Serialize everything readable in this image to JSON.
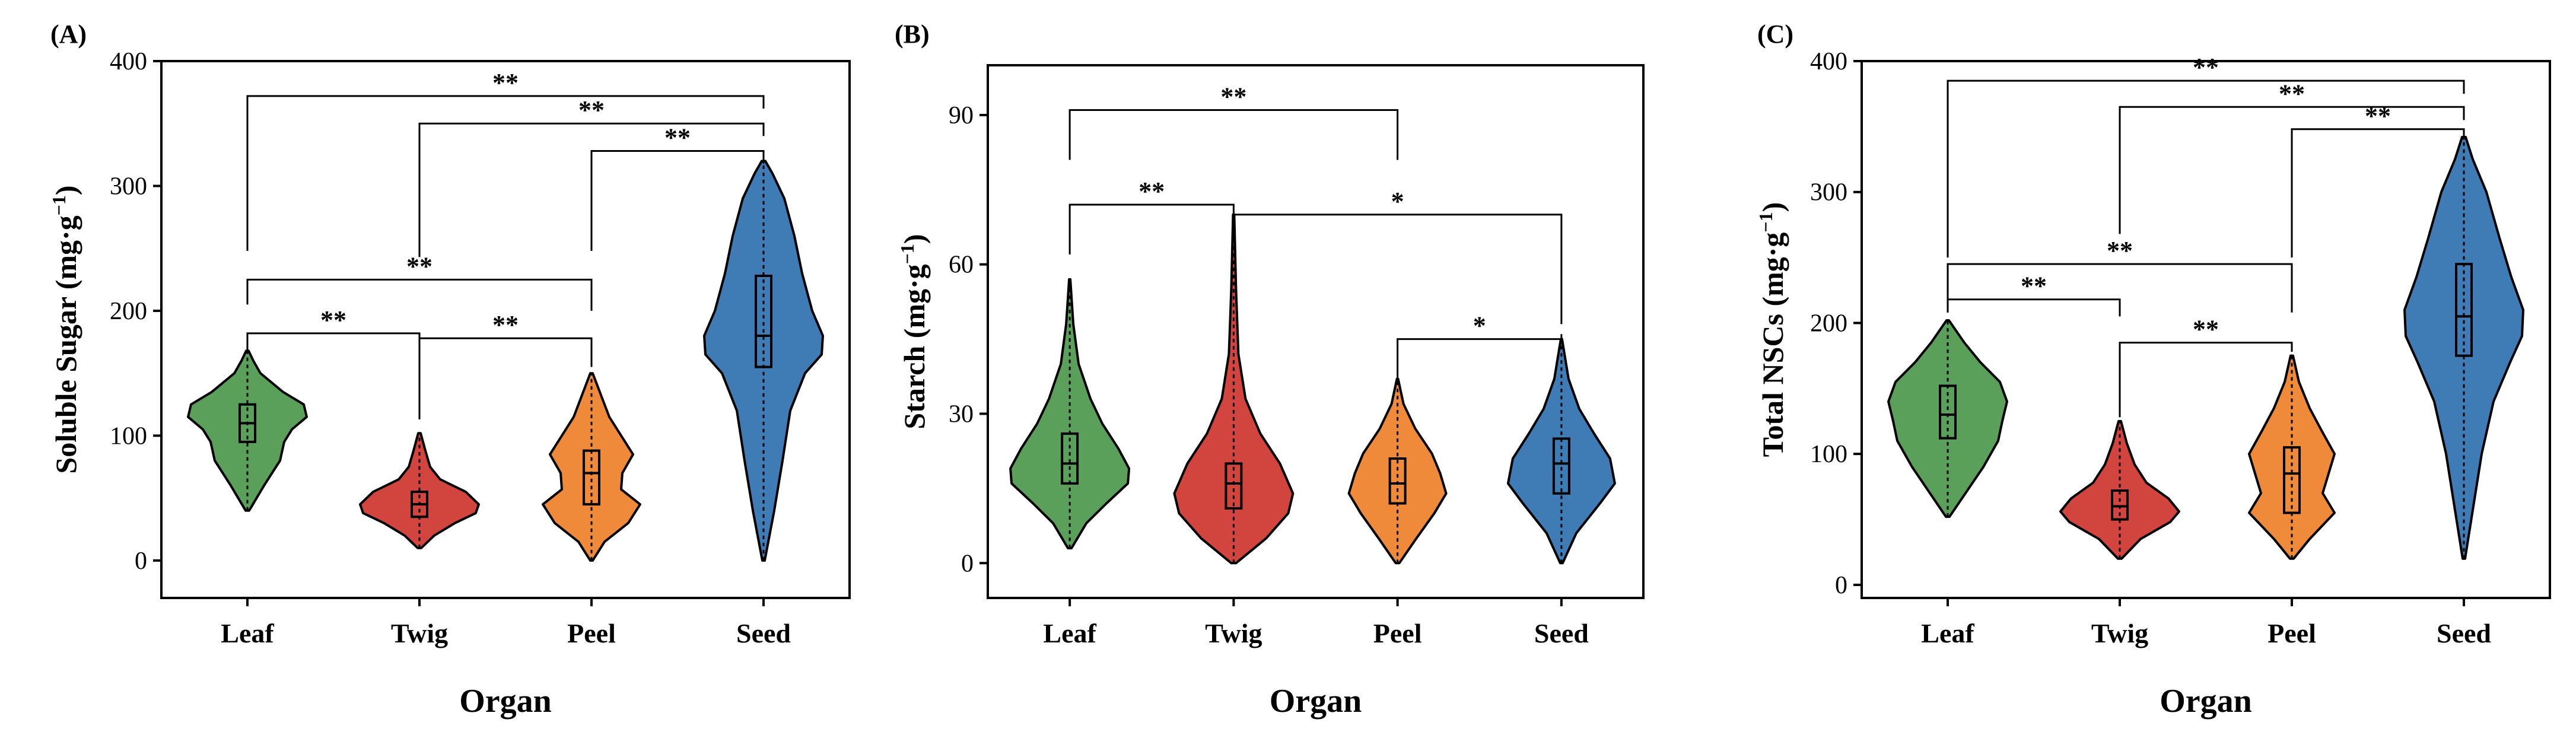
{
  "chart_data": [
    {
      "type": "violin",
      "panel_label": "(A)",
      "title": "",
      "xlabel": "Organ",
      "ylabel": "Soluble Sugar (mg·g",
      "ylabel_sup": "−1",
      "ylabel_close": ")",
      "ylim": [
        -30,
        400
      ],
      "yticks": [
        0,
        100,
        200,
        300,
        400
      ],
      "categories": [
        "Leaf",
        "Twig",
        "Peel",
        "Seed"
      ],
      "series": [
        {
          "category": "Leaf",
          "color": "#5ba05a",
          "min": 40,
          "q1": 95,
          "median": 110,
          "q3": 125,
          "max": 168,
          "density": [
            [
              40,
              0.03
            ],
            [
              60,
              0.28
            ],
            [
              80,
              0.55
            ],
            [
              95,
              0.62
            ],
            [
              105,
              0.75
            ],
            [
              115,
              1.0
            ],
            [
              125,
              0.95
            ],
            [
              135,
              0.6
            ],
            [
              150,
              0.22
            ],
            [
              160,
              0.1
            ],
            [
              168,
              0.02
            ]
          ]
        },
        {
          "category": "Twig",
          "color": "#d2453f",
          "min": 10,
          "q1": 35,
          "median": 45,
          "q3": 55,
          "max": 102,
          "density": [
            [
              10,
              0.03
            ],
            [
              20,
              0.25
            ],
            [
              30,
              0.6
            ],
            [
              38,
              0.95
            ],
            [
              45,
              1.0
            ],
            [
              55,
              0.78
            ],
            [
              65,
              0.35
            ],
            [
              75,
              0.18
            ],
            [
              88,
              0.1
            ],
            [
              102,
              0.02
            ]
          ]
        },
        {
          "category": "Peel",
          "color": "#ef8a3b",
          "min": 0,
          "q1": 45,
          "median": 70,
          "q3": 88,
          "max": 150,
          "density": [
            [
              0,
              0.02
            ],
            [
              15,
              0.22
            ],
            [
              30,
              0.62
            ],
            [
              45,
              0.82
            ],
            [
              57,
              0.5
            ],
            [
              70,
              0.52
            ],
            [
              85,
              0.7
            ],
            [
              100,
              0.5
            ],
            [
              115,
              0.3
            ],
            [
              130,
              0.18
            ],
            [
              150,
              0.02
            ]
          ]
        },
        {
          "category": "Seed",
          "color": "#3f7bb5",
          "min": 0,
          "q1": 155,
          "median": 180,
          "q3": 228,
          "max": 320,
          "density": [
            [
              0,
              0.02
            ],
            [
              40,
              0.18
            ],
            [
              80,
              0.32
            ],
            [
              120,
              0.45
            ],
            [
              150,
              0.7
            ],
            [
              165,
              0.98
            ],
            [
              180,
              1.0
            ],
            [
              200,
              0.82
            ],
            [
              230,
              0.65
            ],
            [
              260,
              0.52
            ],
            [
              290,
              0.35
            ],
            [
              310,
              0.15
            ],
            [
              320,
              0.03
            ]
          ]
        }
      ],
      "brackets": [
        {
          "from": 0,
          "to": 3,
          "y": 372,
          "label": "**",
          "drop_left": 248,
          "drop_right": 362
        },
        {
          "from": 1,
          "to": 3,
          "y": 350,
          "label": "**",
          "drop_left": 243,
          "drop_right": 340
        },
        {
          "from": 2,
          "to": 3,
          "y": 328,
          "label": "**",
          "drop_left": 248,
          "drop_right": 318
        },
        {
          "from": 0,
          "to": 2,
          "y": 225,
          "label": "**",
          "drop_left": 205,
          "drop_right": 200
        },
        {
          "from": 0,
          "to": 1,
          "y": 182,
          "label": "**",
          "drop_left": 168,
          "drop_right": 113
        },
        {
          "from": 1,
          "to": 2,
          "y": 178,
          "label": "**",
          "drop_left": 113,
          "drop_right": 155
        }
      ]
    },
    {
      "type": "violin",
      "panel_label": "(B)",
      "title": "",
      "xlabel": "Organ",
      "ylabel": "Starch (mg·g",
      "ylabel_sup": "−1",
      "ylabel_close": ")",
      "ylim": [
        -7,
        100
      ],
      "yticks": [
        0,
        30,
        60,
        90
      ],
      "categories": [
        "Leaf",
        "Twig",
        "Peel",
        "Seed"
      ],
      "series": [
        {
          "category": "Leaf",
          "color": "#5ba05a",
          "min": 3,
          "q1": 16,
          "median": 20,
          "q3": 26,
          "max": 57,
          "density": [
            [
              3,
              0.03
            ],
            [
              8,
              0.28
            ],
            [
              12,
              0.62
            ],
            [
              16,
              0.98
            ],
            [
              19,
              1.0
            ],
            [
              23,
              0.82
            ],
            [
              28,
              0.55
            ],
            [
              33,
              0.35
            ],
            [
              40,
              0.15
            ],
            [
              48,
              0.06
            ],
            [
              57,
              0.01
            ]
          ]
        },
        {
          "category": "Twig",
          "color": "#d2453f",
          "min": 0,
          "q1": 11,
          "median": 16,
          "q3": 20,
          "max": 70,
          "density": [
            [
              0,
              0.04
            ],
            [
              5,
              0.55
            ],
            [
              10,
              0.92
            ],
            [
              14,
              1.0
            ],
            [
              20,
              0.78
            ],
            [
              26,
              0.45
            ],
            [
              33,
              0.2
            ],
            [
              42,
              0.08
            ],
            [
              55,
              0.04
            ],
            [
              70,
              0.01
            ]
          ]
        },
        {
          "category": "Peel",
          "color": "#ef8a3b",
          "min": 0,
          "q1": 12,
          "median": 16,
          "q3": 21,
          "max": 37,
          "density": [
            [
              0,
              0.03
            ],
            [
              5,
              0.32
            ],
            [
              10,
              0.62
            ],
            [
              14,
              0.82
            ],
            [
              18,
              0.72
            ],
            [
              22,
              0.58
            ],
            [
              27,
              0.3
            ],
            [
              32,
              0.1
            ],
            [
              37,
              0.01
            ]
          ]
        },
        {
          "category": "Seed",
          "color": "#3f7bb5",
          "min": 0,
          "q1": 14,
          "median": 20,
          "q3": 25,
          "max": 45,
          "density": [
            [
              0,
              0.02
            ],
            [
              6,
              0.25
            ],
            [
              12,
              0.65
            ],
            [
              16,
              0.9
            ],
            [
              21,
              0.82
            ],
            [
              26,
              0.55
            ],
            [
              31,
              0.3
            ],
            [
              37,
              0.12
            ],
            [
              45,
              0.01
            ]
          ]
        }
      ],
      "brackets": [
        {
          "from": 0,
          "to": 2,
          "y": 91,
          "label": "**",
          "drop_left": 81,
          "drop_right": 81
        },
        {
          "from": 0,
          "to": 1,
          "y": 72,
          "label": "**",
          "drop_left": 62,
          "drop_right": 71
        },
        {
          "from": 1,
          "to": 3,
          "y": 70,
          "label": "*",
          "drop_left": 71,
          "drop_right": 48
        },
        {
          "from": 2,
          "to": 3,
          "y": 45,
          "label": "*",
          "drop_left": 36,
          "drop_right": 46
        }
      ]
    },
    {
      "type": "violin",
      "panel_label": "(C)",
      "title": "",
      "xlabel": "Organ",
      "ylabel": "Total NSCs (mg·g",
      "ylabel_sup": "−1",
      "ylabel_close": ")",
      "ylim": [
        -10,
        400
      ],
      "yticks": [
        0,
        100,
        200,
        300,
        400
      ],
      "categories": [
        "Leaf",
        "Twig",
        "Peel",
        "Seed"
      ],
      "series": [
        {
          "category": "Leaf",
          "color": "#5ba05a",
          "min": 52,
          "q1": 112,
          "median": 130,
          "q3": 152,
          "max": 202,
          "density": [
            [
              52,
              0.03
            ],
            [
              70,
              0.3
            ],
            [
              90,
              0.6
            ],
            [
              110,
              0.85
            ],
            [
              125,
              0.92
            ],
            [
              140,
              1.0
            ],
            [
              155,
              0.88
            ],
            [
              170,
              0.55
            ],
            [
              185,
              0.28
            ],
            [
              202,
              0.02
            ]
          ]
        },
        {
          "category": "Twig",
          "color": "#d2453f",
          "min": 20,
          "q1": 50,
          "median": 60,
          "q3": 72,
          "max": 125,
          "density": [
            [
              20,
              0.03
            ],
            [
              35,
              0.35
            ],
            [
              48,
              0.85
            ],
            [
              56,
              1.0
            ],
            [
              66,
              0.82
            ],
            [
              78,
              0.45
            ],
            [
              92,
              0.25
            ],
            [
              108,
              0.12
            ],
            [
              125,
              0.02
            ]
          ]
        },
        {
          "category": "Peel",
          "color": "#ef8a3b",
          "min": 20,
          "q1": 55,
          "median": 85,
          "q3": 105,
          "max": 175,
          "density": [
            [
              20,
              0.03
            ],
            [
              35,
              0.3
            ],
            [
              55,
              0.72
            ],
            [
              70,
              0.52
            ],
            [
              85,
              0.62
            ],
            [
              100,
              0.72
            ],
            [
              118,
              0.5
            ],
            [
              135,
              0.3
            ],
            [
              155,
              0.12
            ],
            [
              175,
              0.02
            ]
          ]
        },
        {
          "category": "Seed",
          "color": "#3f7bb5",
          "min": 20,
          "q1": 175,
          "median": 205,
          "q3": 245,
          "max": 342,
          "density": [
            [
              20,
              0.02
            ],
            [
              60,
              0.16
            ],
            [
              100,
              0.3
            ],
            [
              140,
              0.5
            ],
            [
              170,
              0.78
            ],
            [
              190,
              0.98
            ],
            [
              210,
              1.0
            ],
            [
              235,
              0.8
            ],
            [
              265,
              0.6
            ],
            [
              300,
              0.38
            ],
            [
              325,
              0.15
            ],
            [
              342,
              0.03
            ]
          ]
        }
      ],
      "brackets": [
        {
          "from": 0,
          "to": 3,
          "y": 385,
          "label": "**",
          "drop_left": 250,
          "drop_right": 375
        },
        {
          "from": 1,
          "to": 3,
          "y": 365,
          "label": "**",
          "drop_left": 268,
          "drop_right": 355
        },
        {
          "from": 2,
          "to": 3,
          "y": 348,
          "label": "**",
          "drop_left": 250,
          "drop_right": 340
        },
        {
          "from": 0,
          "to": 2,
          "y": 245,
          "label": "**",
          "drop_left": 208,
          "drop_right": 208
        },
        {
          "from": 0,
          "to": 1,
          "y": 218,
          "label": "**",
          "drop_left": 208,
          "drop_right": 205
        },
        {
          "from": 1,
          "to": 2,
          "y": 185,
          "label": "**",
          "drop_left": 128,
          "drop_right": 178
        }
      ]
    }
  ]
}
